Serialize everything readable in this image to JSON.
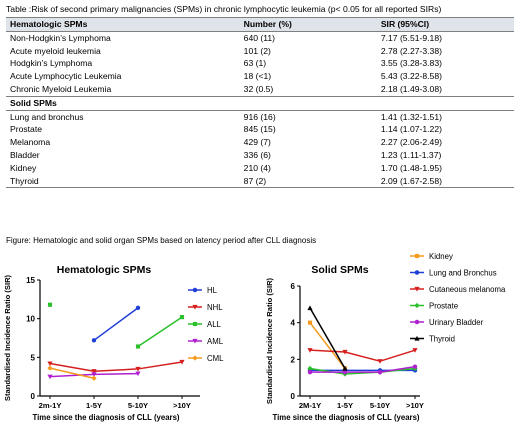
{
  "table": {
    "caption": "Table :Risk of second primary malignancies (SPMs) in chronic lymphocytic  leukemia  (p< 0.05 for all reported SIRs)",
    "header": [
      "Hematologic SPMs",
      "Number (%)",
      "SIR (95%CI)"
    ],
    "hematologic_rows": [
      [
        "Non-Hodgkin’s Lymphoma",
        "640 (11)",
        "7.17 (5.51-9.18)"
      ],
      [
        "Acute myeloid leukemia",
        "101 (2)",
        "2.78 (2.27-3.38)"
      ],
      [
        "Hodgkin’s Lymphoma",
        "63 (1)",
        "3.55 (3.28-3.83)"
      ],
      [
        "Acute Lymphocytic Leukemia",
        "18 (<1)",
        "5.43 (3.22-8.58)"
      ],
      [
        "Chronic Myeloid Leukemia",
        "32 (0.5)",
        "2.18 (1.49-3.08)"
      ]
    ],
    "solid_header": "Solid SPMs",
    "solid_rows": [
      [
        "Lung and bronchus",
        "916 (16)",
        "1.41 (1.32-1.51)"
      ],
      [
        "Prostate",
        "845 (15)",
        "1.14 (1.07-1.22)"
      ],
      [
        "Melanoma",
        "429 (7)",
        "2.27 (2.06-2.49)"
      ],
      [
        "Bladder",
        "336 (6)",
        "1.23 (1.11-1.37)"
      ],
      [
        "Kidney",
        "210 (4)",
        "1.70 (1.48-1.95)"
      ],
      [
        "Thyroid",
        "87 (2)",
        "2.09 (1.67-2.58)"
      ]
    ]
  },
  "figure_caption": "Figure: Hematologic and solid organ SPMs based on latency period after CLL diagnosis",
  "chart_data": [
    {
      "type": "line",
      "title": "Hematologic SPMs",
      "xlabel": "Time since the diagnosis of CLL (years)",
      "ylabel": "Standardised Incidence Ratio (SIR)",
      "categories": [
        "2m-1Y",
        "1-5Y",
        "5-10Y",
        ">10Y"
      ],
      "ylim": [
        0,
        15
      ],
      "yticks": [
        0,
        5,
        10,
        15
      ],
      "legend_position": "right",
      "series": [
        {
          "name": "HL",
          "color": "#1f3fd6",
          "marker": "circle",
          "values": [
            null,
            7.2,
            11.4,
            null
          ]
        },
        {
          "name": "NHL",
          "color": "#d62020",
          "marker": "triangle-down",
          "values": [
            4.2,
            3.2,
            3.5,
            4.4
          ]
        },
        {
          "name": "ALL",
          "color": "#2bbf2b",
          "marker": "square",
          "values": [
            11.8,
            null,
            6.4,
            10.2
          ]
        },
        {
          "name": "AML",
          "color": "#b020d0",
          "marker": "triangle-down",
          "values": [
            2.5,
            2.8,
            2.9,
            null
          ]
        },
        {
          "name": "CML",
          "color": "#f59a1e",
          "marker": "diamond",
          "values": [
            3.6,
            2.3,
            null,
            null
          ]
        }
      ]
    },
    {
      "type": "line",
      "title": "Solid SPMs",
      "xlabel": "Time since the diagnosis of CLL (years)",
      "ylabel": "Standardised Incidence Ratio (SIR)",
      "categories": [
        "2M-1Y",
        "1-5Y",
        "5-10Y",
        ">10Y"
      ],
      "ylim": [
        0,
        6
      ],
      "yticks": [
        0,
        2,
        4,
        6
      ],
      "legend_position": "right",
      "series": [
        {
          "name": "Kidney",
          "color": "#f59a1e",
          "marker": "square",
          "values": [
            4.0,
            1.5,
            null,
            null
          ]
        },
        {
          "name": "Lung and Bronchus",
          "color": "#1f3fd6",
          "marker": "circle",
          "values": [
            1.4,
            1.4,
            1.4,
            1.4
          ]
        },
        {
          "name": "Cutaneous melanoma",
          "color": "#d62020",
          "marker": "triangle-down",
          "values": [
            2.5,
            2.4,
            1.9,
            2.5
          ]
        },
        {
          "name": "Prostate",
          "color": "#2bbf2b",
          "marker": "diamond",
          "values": [
            1.5,
            1.2,
            1.3,
            1.5
          ]
        },
        {
          "name": "Urinary Bladder",
          "color": "#b020d0",
          "marker": "circle",
          "values": [
            1.3,
            1.3,
            1.3,
            1.6
          ]
        },
        {
          "name": "Thyroid",
          "color": "#000000",
          "marker": "triangle-up",
          "values": [
            4.8,
            1.5,
            null,
            null
          ]
        }
      ]
    }
  ]
}
